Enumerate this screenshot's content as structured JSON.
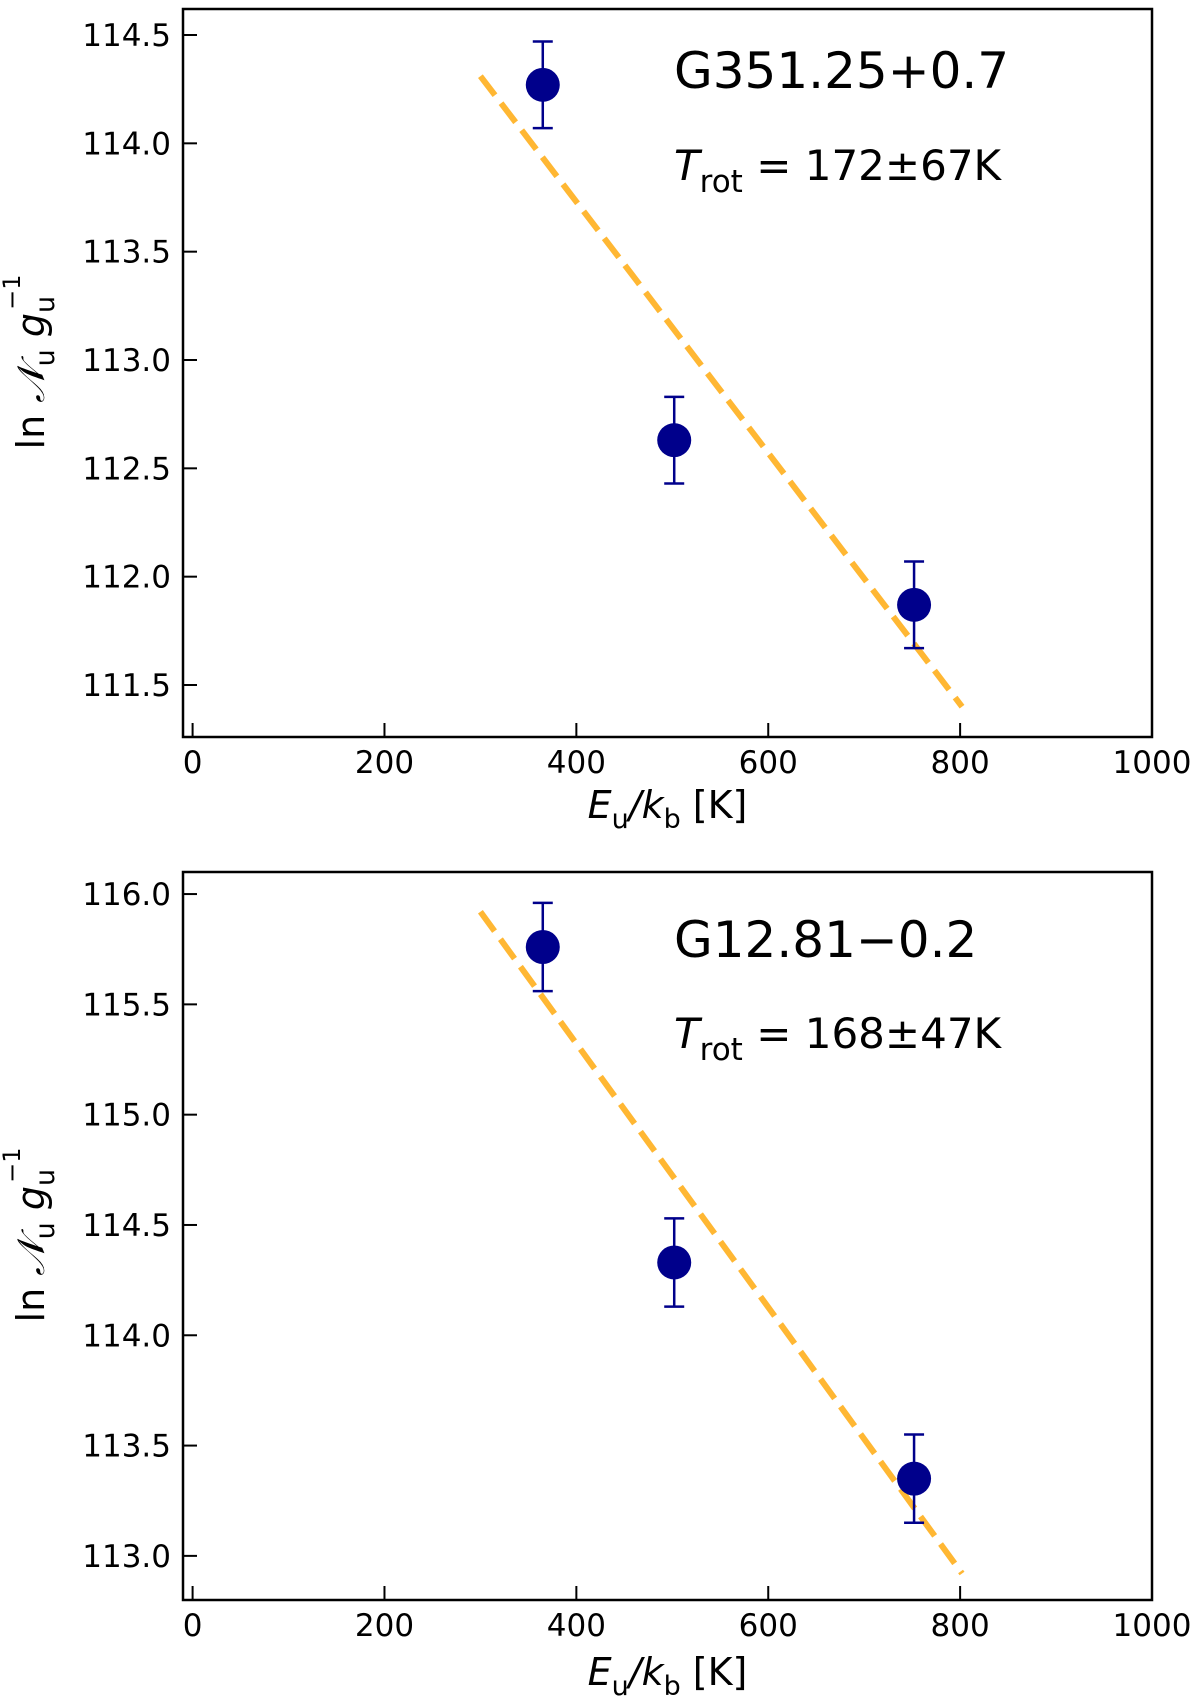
{
  "chart_data": [
    {
      "type": "scatter",
      "xlim": [
        -10,
        1000
      ],
      "ylim": [
        111.26,
        114.62
      ],
      "xticks": [
        0,
        200,
        400,
        600,
        800,
        1000
      ],
      "xtick_labels": [
        "0",
        "200",
        "400",
        "600",
        "800",
        "1000"
      ],
      "yticks": [
        111.5,
        112.0,
        112.5,
        113.0,
        113.5,
        114.0,
        114.5
      ],
      "ytick_labels": [
        "111.5",
        "112.0",
        "112.5",
        "113.0",
        "113.5",
        "114.0",
        "114.5"
      ],
      "xlabel": {
        "main": "E",
        "sub1": "u",
        "mid": "/k",
        "sub2": "b",
        "unit": " [K]"
      },
      "ylabel": {
        "pre": "ln ",
        "n": "𝒩",
        "nsub": "u",
        "g": " g",
        "gsub": "u",
        "gsup": "−1"
      },
      "source_name": "G351.25+0.7",
      "trot": {
        "symbol": "T",
        "sub": "rot",
        "value": " = 172±67K"
      },
      "points": [
        {
          "x": 365,
          "y": 114.27,
          "err": 0.2
        },
        {
          "x": 502,
          "y": 112.63,
          "err": 0.2
        },
        {
          "x": 752,
          "y": 111.87,
          "err": 0.2
        }
      ],
      "fit": {
        "x": [
          300,
          802
        ],
        "y": [
          114.31,
          111.4
        ]
      },
      "colors": {
        "points": "#00008b",
        "fit": "#ffb733"
      },
      "grid": false
    },
    {
      "type": "scatter",
      "xlim": [
        -10,
        1000
      ],
      "ylim": [
        112.8,
        116.1
      ],
      "xticks": [
        0,
        200,
        400,
        600,
        800,
        1000
      ],
      "xtick_labels": [
        "0",
        "200",
        "400",
        "600",
        "800",
        "1000"
      ],
      "yticks": [
        113.0,
        113.5,
        114.0,
        114.5,
        115.0,
        115.5,
        116.0
      ],
      "ytick_labels": [
        "113.0",
        "113.5",
        "114.0",
        "114.5",
        "115.0",
        "115.5",
        "116.0"
      ],
      "xlabel": {
        "main": "E",
        "sub1": "u",
        "mid": "/k",
        "sub2": "b",
        "unit": " [K]"
      },
      "ylabel": {
        "pre": "ln ",
        "n": "𝒩",
        "nsub": "u",
        "g": " g",
        "gsub": "u",
        "gsup": "−1"
      },
      "source_name": "G12.81−0.2",
      "trot": {
        "symbol": "T",
        "sub": "rot",
        "value": " = 168±47K"
      },
      "points": [
        {
          "x": 365,
          "y": 115.76,
          "err": 0.2
        },
        {
          "x": 502,
          "y": 114.33,
          "err": 0.2
        },
        {
          "x": 752,
          "y": 113.35,
          "err": 0.2
        }
      ],
      "fit": {
        "x": [
          300,
          802
        ],
        "y": [
          115.92,
          112.92
        ]
      },
      "colors": {
        "points": "#00008b",
        "fit": "#ffb733"
      },
      "grid": false
    }
  ]
}
